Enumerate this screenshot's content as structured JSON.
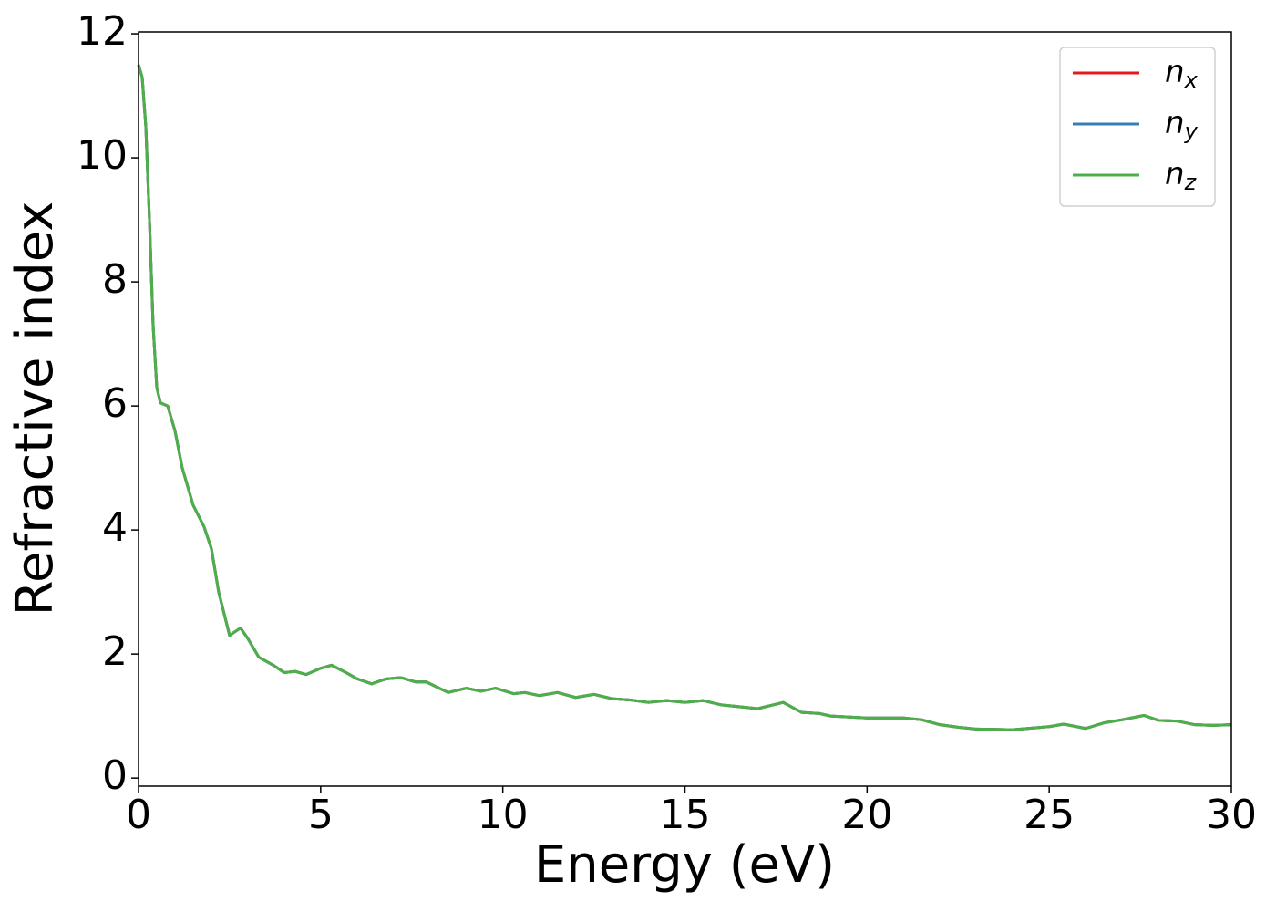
{
  "chart_data": {
    "type": "line",
    "xlabel": "Energy (eV)",
    "ylabel": "Refractive index",
    "x": [
      0,
      0.1,
      0.2,
      0.3,
      0.4,
      0.5,
      0.6,
      0.8,
      1.0,
      1.2,
      1.5,
      1.8,
      2.0,
      2.2,
      2.5,
      2.8,
      3.0,
      3.3,
      3.7,
      4.0,
      4.3,
      4.6,
      5.0,
      5.3,
      5.7,
      6.0,
      6.4,
      6.8,
      7.2,
      7.6,
      7.9,
      8.5,
      9.0,
      9.4,
      9.8,
      10.3,
      10.6,
      11.0,
      11.5,
      12.0,
      12.5,
      13.0,
      13.5,
      14.0,
      14.5,
      15.0,
      15.5,
      16.0,
      17.0,
      17.7,
      18.2,
      18.7,
      19.0,
      20.0,
      21.0,
      21.5,
      22.0,
      22.5,
      23.0,
      24.0,
      25.0,
      25.4,
      26.0,
      26.5,
      27.0,
      27.6,
      28.0,
      28.5,
      29.0,
      29.5,
      30.0
    ],
    "series": [
      {
        "name": "nx",
        "color": "#e41a1c",
        "values": [
          11.5,
          11.3,
          10.5,
          9.0,
          7.3,
          6.3,
          6.05,
          6.0,
          5.6,
          5.0,
          4.4,
          4.05,
          3.7,
          3.0,
          2.3,
          2.42,
          2.25,
          1.95,
          1.82,
          1.7,
          1.72,
          1.67,
          1.77,
          1.82,
          1.7,
          1.6,
          1.52,
          1.6,
          1.62,
          1.55,
          1.55,
          1.38,
          1.45,
          1.4,
          1.45,
          1.36,
          1.38,
          1.33,
          1.38,
          1.3,
          1.35,
          1.28,
          1.26,
          1.22,
          1.25,
          1.22,
          1.25,
          1.18,
          1.12,
          1.22,
          1.06,
          1.04,
          1.0,
          0.97,
          0.97,
          0.94,
          0.86,
          0.82,
          0.79,
          0.78,
          0.83,
          0.87,
          0.8,
          0.89,
          0.94,
          1.01,
          0.93,
          0.92,
          0.86,
          0.85,
          0.86
        ]
      },
      {
        "name": "ny",
        "color": "#377eb8",
        "values": [
          11.5,
          11.3,
          10.5,
          9.0,
          7.3,
          6.3,
          6.05,
          6.0,
          5.6,
          5.0,
          4.4,
          4.05,
          3.7,
          3.0,
          2.3,
          2.42,
          2.25,
          1.95,
          1.82,
          1.7,
          1.72,
          1.67,
          1.77,
          1.82,
          1.7,
          1.6,
          1.52,
          1.6,
          1.62,
          1.55,
          1.55,
          1.38,
          1.45,
          1.4,
          1.45,
          1.36,
          1.38,
          1.33,
          1.38,
          1.3,
          1.35,
          1.28,
          1.26,
          1.22,
          1.25,
          1.22,
          1.25,
          1.18,
          1.12,
          1.22,
          1.06,
          1.04,
          1.0,
          0.97,
          0.97,
          0.94,
          0.86,
          0.82,
          0.79,
          0.78,
          0.83,
          0.87,
          0.8,
          0.89,
          0.94,
          1.01,
          0.93,
          0.92,
          0.86,
          0.85,
          0.86
        ]
      },
      {
        "name": "nz",
        "color": "#4daf4a",
        "values": [
          11.5,
          11.3,
          10.5,
          9.0,
          7.3,
          6.3,
          6.05,
          6.0,
          5.6,
          5.0,
          4.4,
          4.05,
          3.7,
          3.0,
          2.3,
          2.42,
          2.25,
          1.95,
          1.82,
          1.7,
          1.72,
          1.67,
          1.77,
          1.82,
          1.7,
          1.6,
          1.52,
          1.6,
          1.62,
          1.55,
          1.55,
          1.38,
          1.45,
          1.4,
          1.45,
          1.36,
          1.38,
          1.33,
          1.38,
          1.3,
          1.35,
          1.28,
          1.26,
          1.22,
          1.25,
          1.22,
          1.25,
          1.18,
          1.12,
          1.22,
          1.06,
          1.04,
          1.0,
          0.97,
          0.97,
          0.94,
          0.86,
          0.82,
          0.79,
          0.78,
          0.83,
          0.87,
          0.8,
          0.89,
          0.94,
          1.01,
          0.93,
          0.92,
          0.86,
          0.85,
          0.86
        ]
      }
    ],
    "xlim": [
      0,
      30
    ],
    "xticks": [
      0,
      5,
      10,
      15,
      20,
      25,
      30
    ],
    "ylim": [
      -0.13,
      12.03
    ],
    "yticks": [
      0,
      2,
      4,
      6,
      8,
      10,
      12
    ],
    "legend": "upper right"
  }
}
